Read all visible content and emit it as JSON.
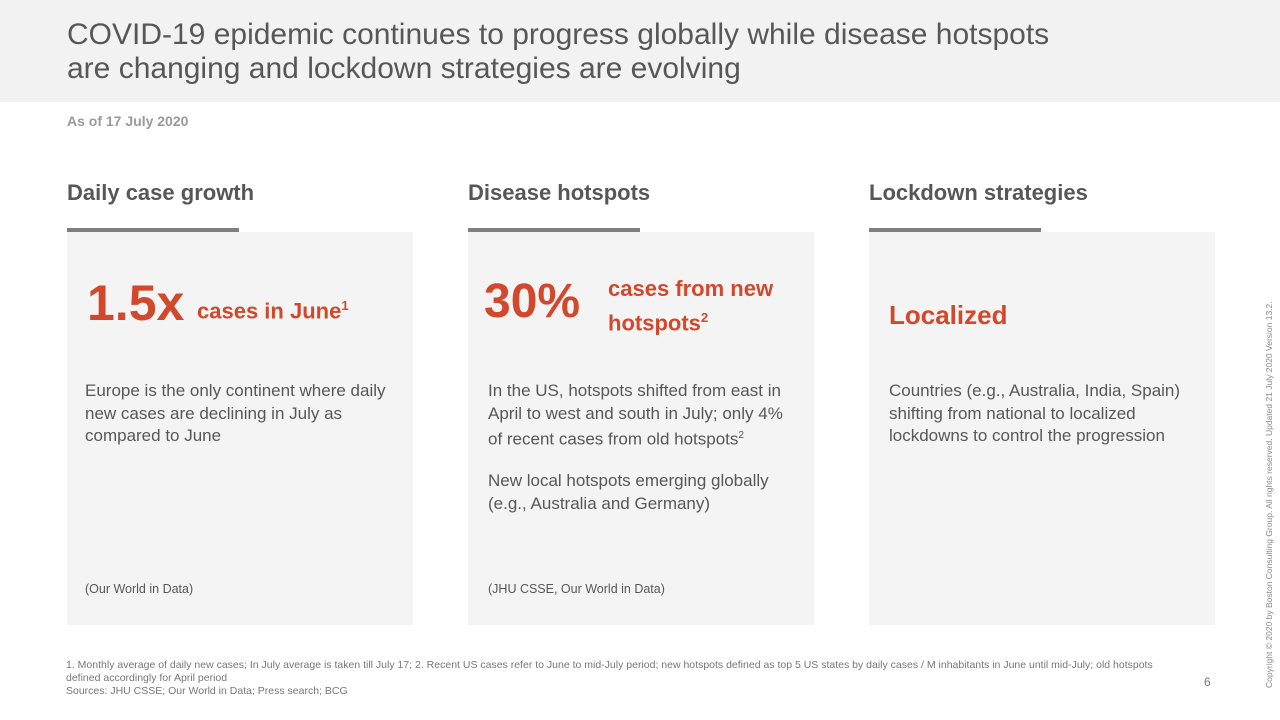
{
  "title": "COVID-19 epidemic continues to progress globally while disease hotspots are changing and lockdown strategies are evolving",
  "as_of": "As of 17 July 2020",
  "columns": [
    {
      "heading": "Daily case growth",
      "big": "1.5x",
      "label": "cases in June",
      "sup": "1",
      "text": "Europe is the only continent where daily new cases are declining in July as compared to June",
      "text2": "",
      "source": "(Our World in Data)"
    },
    {
      "heading": "Disease hotspots",
      "big": "30%",
      "label": "cases from new hotspots",
      "sup": "2",
      "text": "In the US, hotspots shifted from east in April to west and south in July; only 4% of recent cases from old hotspots",
      "text_sup": "2",
      "text2": "New local hotspots emerging globally (e.g., Australia and Germany)",
      "source": "(JHU CSSE, Our World in Data)"
    },
    {
      "heading": "Lockdown strategies",
      "big": "Localized",
      "text": "Countries (e.g., Australia, India, Spain) shifting from national to localized lockdowns to control the progression",
      "source": ""
    }
  ],
  "footnotes": [
    "1. Monthly average of daily new cases; In July average is taken till July 17;  2. Recent US cases refer to June to mid-July period; new hotspots defined as top 5 US states by daily cases / M inhabitants in June until mid-July; old hotspots defined accordingly for April period",
    "Sources: JHU CSSE; Our World in Data; Press search; BCG"
  ],
  "page_number": "6",
  "copyright": "Copyright © 2020 by Boston Consulting Group. All rights reserved. Updated 21 July 2020 Version 13.2."
}
